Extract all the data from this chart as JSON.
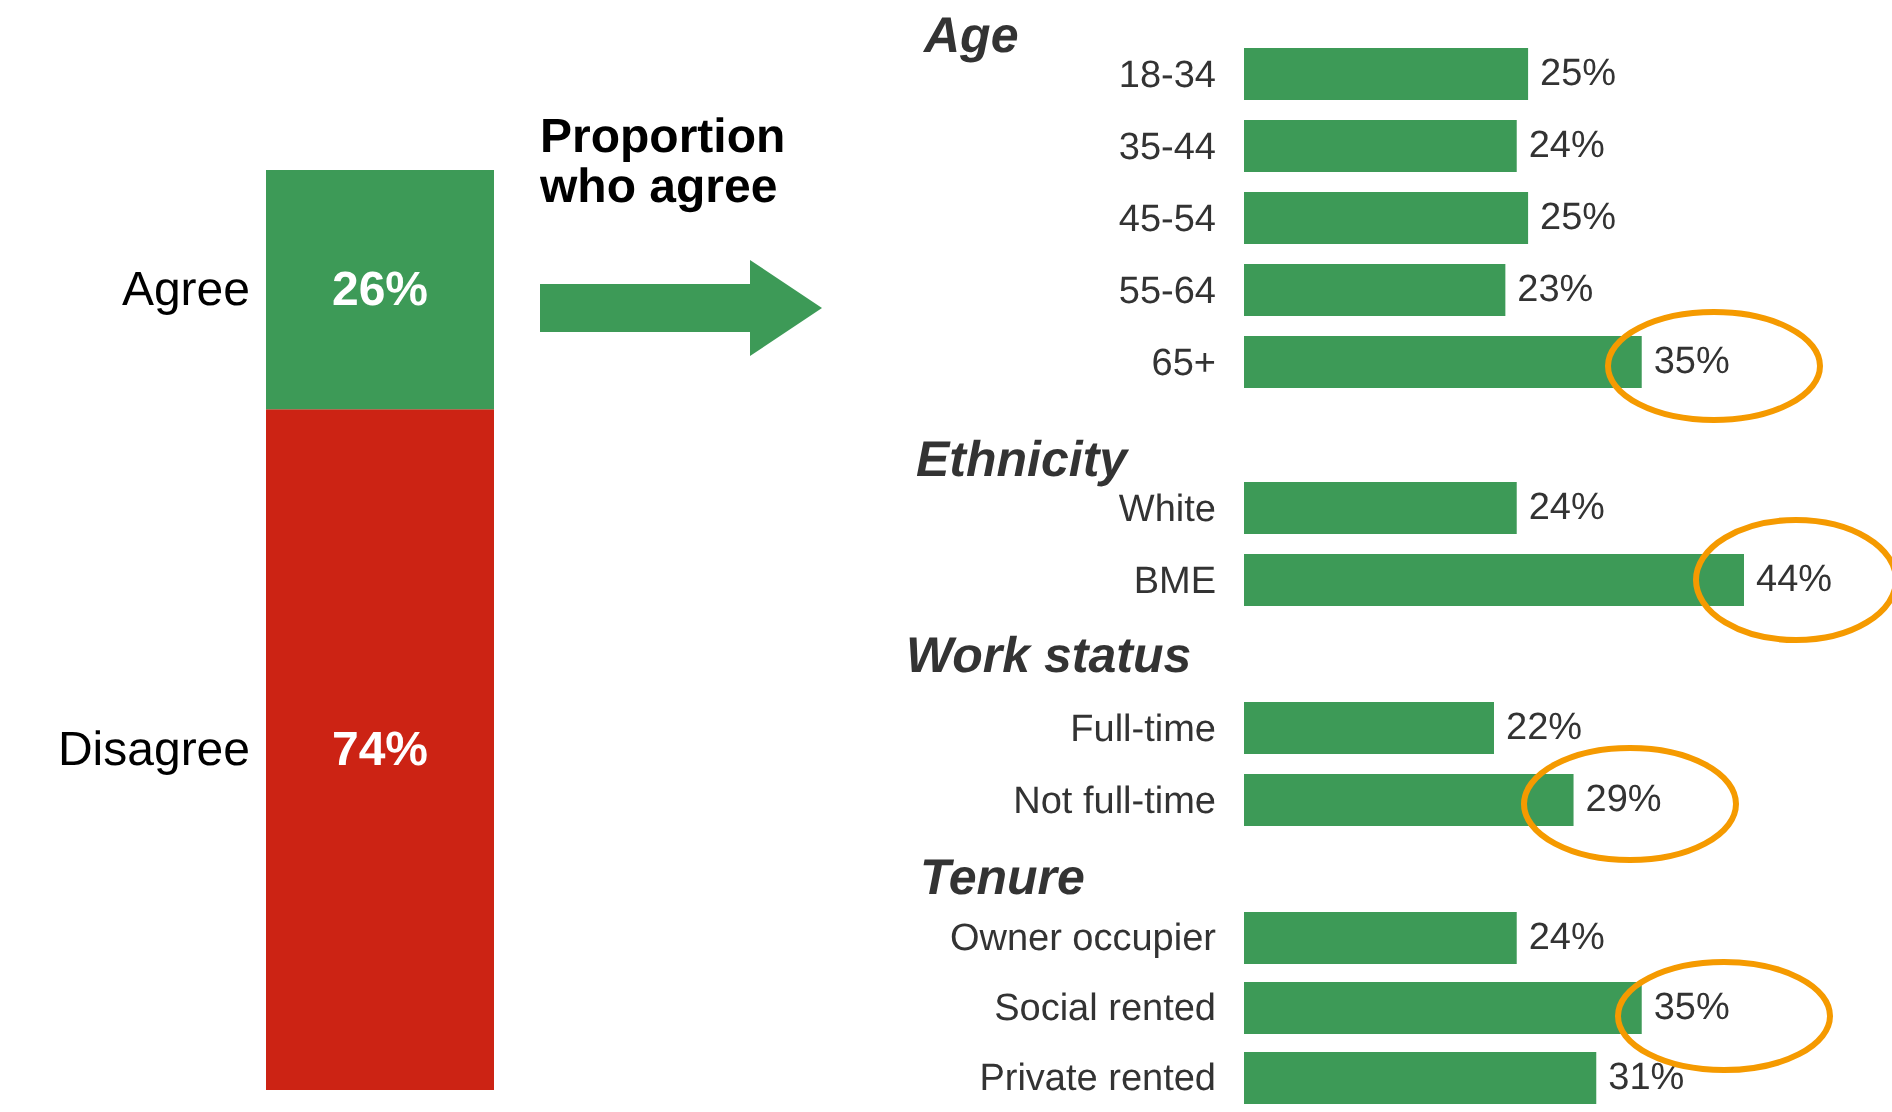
{
  "chart_data": [
    {
      "type": "bar",
      "stacked": true,
      "categories": [
        null
      ],
      "ylim": [
        0,
        100
      ],
      "tick_labels": false,
      "annotations": [
        "Proportion who agree"
      ],
      "series": [
        {
          "name": "Disagree",
          "color": "#cc2314",
          "values": [
            74
          ],
          "value_labels": [
            "74%"
          ]
        },
        {
          "name": "Agree",
          "color": "#3d9a57",
          "values": [
            26
          ],
          "value_labels": [
            "26%"
          ]
        }
      ]
    },
    {
      "type": "bar",
      "orientation": "horizontal",
      "title": "Age",
      "categories": [
        "18-34",
        "35-44",
        "45-54",
        "55-64",
        "65+"
      ],
      "values": [
        25,
        24,
        25,
        23,
        35
      ],
      "value_labels": [
        "25%",
        "24%",
        "25%",
        "23%",
        "35%"
      ],
      "color": "#3d9a57",
      "tick_labels": "y"
    },
    {
      "type": "bar",
      "orientation": "horizontal",
      "title": "Ethnicity",
      "categories": [
        "White",
        "BME"
      ],
      "values": [
        24,
        44
      ],
      "value_labels": [
        "24%",
        "44%"
      ],
      "color": "#3d9a57",
      "tick_labels": "y"
    },
    {
      "type": "bar",
      "orientation": "horizontal",
      "title": "Work status",
      "categories": [
        "Full-time",
        "Not full-time"
      ],
      "values": [
        22,
        29
      ],
      "value_labels": [
        "22%",
        "29%"
      ],
      "color": "#3d9a57",
      "tick_labels": "y"
    },
    {
      "type": "bar",
      "orientation": "horizontal",
      "title": "Tenure",
      "categories": [
        "Owner occupier",
        "Social rented",
        "Private rented"
      ],
      "values": [
        24,
        35,
        31
      ],
      "value_labels": [
        "24%",
        "35%",
        "31%"
      ],
      "color": "#3d9a57",
      "tick_labels": "y"
    }
  ]
}
